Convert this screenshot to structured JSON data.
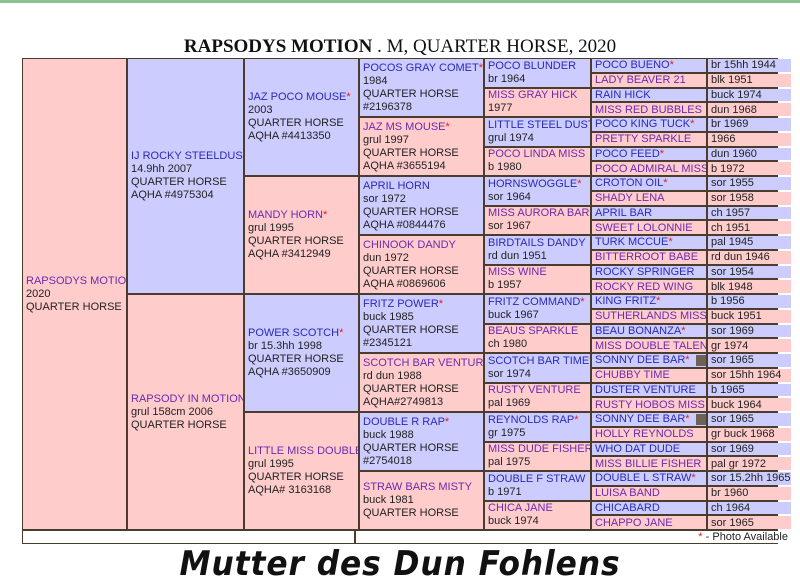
{
  "title": {
    "name": "RAPSODYS MOTION",
    "rest": " . M, QUARTER HORSE, 2020"
  },
  "colors": {
    "male_bg": "#ccccff",
    "female_bg": "#ffcccc",
    "star": "#e02020"
  },
  "gen1": [
    {
      "sex": "f",
      "name": "RAPSODYS MOTION",
      "star": false,
      "lines": [
        "2020",
        "QUARTER HORSE"
      ]
    }
  ],
  "gen2": [
    {
      "sex": "m",
      "name": "IJ ROCKY STEELDUST",
      "star": true,
      "lines": [
        "14.9hh 2007",
        "QUARTER HORSE",
        "AQHA #4975304"
      ]
    },
    {
      "sex": "f",
      "name": "RAPSODY IN MOTION",
      "star": true,
      "lines": [
        "grul 158cm 2006",
        "QUARTER HORSE"
      ]
    }
  ],
  "gen3": [
    {
      "sex": "m",
      "name": "JAZ POCO MOUSE",
      "star": true,
      "lines": [
        "2003",
        "QUARTER HORSE",
        "AQHA #4413350"
      ]
    },
    {
      "sex": "f",
      "name": "MANDY HORN",
      "star": true,
      "lines": [
        "grul 1995",
        "QUARTER HORSE",
        "AQHA #3412949"
      ]
    },
    {
      "sex": "m",
      "name": "POWER SCOTCH",
      "star": true,
      "lines": [
        "br 15.3hh 1998",
        "QUARTER HORSE",
        "AQHA #3650909"
      ]
    },
    {
      "sex": "f",
      "name": "LITTLE MISS DOUBLE",
      "star": true,
      "lines": [
        "grul 1995",
        "QUARTER HORSE",
        "AQHA# 3163168"
      ]
    }
  ],
  "gen4": [
    {
      "sex": "m",
      "name": "POCOS GRAY COMET",
      "star": true,
      "lines": [
        "1984",
        "QUARTER HORSE",
        "#2196378"
      ]
    },
    {
      "sex": "f",
      "name": "JAZ MS MOUSE",
      "star": true,
      "lines": [
        "grul 1997",
        "QUARTER HORSE",
        "AQHA #3655194"
      ]
    },
    {
      "sex": "m",
      "name": "APRIL HORN",
      "star": false,
      "lines": [
        "sor 1972",
        "QUARTER HORSE",
        "AQHA #0844476"
      ]
    },
    {
      "sex": "f",
      "name": "CHINOOK DANDY",
      "star": false,
      "lines": [
        "dun 1972",
        "QUARTER HORSE",
        "AQHA #0869606"
      ]
    },
    {
      "sex": "m",
      "name": "FRITZ POWER",
      "star": true,
      "lines": [
        "buck 1985",
        "QUARTER HORSE",
        "#2345121"
      ]
    },
    {
      "sex": "f",
      "name": "SCOTCH BAR VENTURE",
      "star": true,
      "lines": [
        "rd dun 1988",
        "QUARTER HORSE",
        "AQHA#2749813"
      ]
    },
    {
      "sex": "m",
      "name": "DOUBLE R RAP",
      "star": true,
      "lines": [
        "buck 1988",
        "QUARTER HORSE",
        "#2754018"
      ]
    },
    {
      "sex": "f",
      "name": "STRAW BARS MISTY",
      "star": false,
      "lines": [
        "buck 1981",
        "QUARTER HORSE"
      ]
    }
  ],
  "gen5": [
    {
      "sex": "m",
      "name": "POCO BLUNDER",
      "star": false,
      "lines": [
        "br 1964"
      ]
    },
    {
      "sex": "f",
      "name": "MISS GRAY HICK",
      "star": false,
      "lines": [
        "1977"
      ]
    },
    {
      "sex": "m",
      "name": "LITTLE STEEL DUST",
      "star": true,
      "lines": [
        "grul 1974"
      ]
    },
    {
      "sex": "f",
      "name": "POCO LINDA MISS",
      "star": false,
      "lines": [
        "b 1980"
      ]
    },
    {
      "sex": "m",
      "name": "HORNSWOGGLE",
      "star": true,
      "lines": [
        "sor 1964"
      ]
    },
    {
      "sex": "f",
      "name": "MISS AURORA BAR",
      "star": false,
      "lines": [
        "sor 1967"
      ]
    },
    {
      "sex": "m",
      "name": "BIRDTAILS DANDY",
      "star": false,
      "lines": [
        "rd dun 1951"
      ]
    },
    {
      "sex": "f",
      "name": "MISS WINE",
      "star": false,
      "lines": [
        "b 1957"
      ]
    },
    {
      "sex": "m",
      "name": "FRITZ COMMAND",
      "star": true,
      "lines": [
        "buck 1967"
      ]
    },
    {
      "sex": "f",
      "name": "BEAUS SPARKLE",
      "star": false,
      "lines": [
        "ch 1980"
      ]
    },
    {
      "sex": "m",
      "name": "SCOTCH BAR TIME",
      "star": true,
      "lines": [
        "sor 1974"
      ]
    },
    {
      "sex": "f",
      "name": "RUSTY VENTURE",
      "star": false,
      "lines": [
        "pal 1969"
      ]
    },
    {
      "sex": "m",
      "name": "REYNOLDS RAP",
      "star": true,
      "lines": [
        "gr 1975"
      ]
    },
    {
      "sex": "f",
      "name": "MISS DUDE FISHER",
      "star": false,
      "lines": [
        "pal 1975"
      ]
    },
    {
      "sex": "m",
      "name": "DOUBLE F STRAW",
      "star": false,
      "lines": [
        "b 1971"
      ]
    },
    {
      "sex": "f",
      "name": "CHICA JANE",
      "star": false,
      "lines": [
        "buck 1974"
      ]
    }
  ],
  "gen6": [
    {
      "sex": "m",
      "name": "POCO BUENO",
      "star": true,
      "info": "br 15hh 1944"
    },
    {
      "sex": "f",
      "name": "LADY BEAVER 21",
      "star": false,
      "info": "blk 1951"
    },
    {
      "sex": "m",
      "name": "RAIN HICK",
      "star": false,
      "info": "buck 1974"
    },
    {
      "sex": "f",
      "name": "MISS RED BUBBLES",
      "star": false,
      "info": "dun 1968"
    },
    {
      "sex": "m",
      "name": "POCO KING TUCK",
      "star": true,
      "info": "br 1969"
    },
    {
      "sex": "f",
      "name": "PRETTY SPARKLE",
      "star": false,
      "info": "1966"
    },
    {
      "sex": "m",
      "name": "POCO FEED",
      "star": true,
      "info": "dun 1960"
    },
    {
      "sex": "f",
      "name": "POCO ADMIRAL MISS",
      "star": false,
      "info": "b 1972"
    },
    {
      "sex": "m",
      "name": "CROTON OIL",
      "star": true,
      "info": "sor 1955"
    },
    {
      "sex": "f",
      "name": "SHADY LENA",
      "star": false,
      "info": "sor 1958"
    },
    {
      "sex": "m",
      "name": "APRIL BAR",
      "star": false,
      "info": "ch 1957"
    },
    {
      "sex": "f",
      "name": "SWEET LOLONNIE",
      "star": false,
      "info": "ch 1951"
    },
    {
      "sex": "m",
      "name": "TURK MCCUE",
      "star": true,
      "info": "pal 1945"
    },
    {
      "sex": "f",
      "name": "BITTERROOT BABE",
      "star": false,
      "info": "rd dun 1946"
    },
    {
      "sex": "m",
      "name": "ROCKY SPRINGER",
      "star": false,
      "info": "sor 1954"
    },
    {
      "sex": "f",
      "name": "ROCKY RED WING",
      "star": false,
      "info": "blk 1948"
    },
    {
      "sex": "m",
      "name": "KING FRITZ",
      "star": true,
      "info": "b 1956"
    },
    {
      "sex": "f",
      "name": "SUTHERLANDS MISS",
      "star": true,
      "info": "buck 1951"
    },
    {
      "sex": "m",
      "name": "BEAU BONANZA",
      "star": true,
      "info": "sor 1969"
    },
    {
      "sex": "f",
      "name": "MISS DOUBLE TALENT",
      "star": false,
      "info": "gr 1974"
    },
    {
      "sex": "m",
      "name": "SONNY DEE BAR",
      "star": true,
      "thumb": true,
      "info": "sor 1965"
    },
    {
      "sex": "f",
      "name": "CHUBBY TIME",
      "star": false,
      "info": "sor 15hh 1964"
    },
    {
      "sex": "m",
      "name": "DUSTER VENTURE",
      "star": false,
      "info": "b 1965"
    },
    {
      "sex": "f",
      "name": "RUSTY HOBOS MISS",
      "star": false,
      "info": "buck 1964"
    },
    {
      "sex": "m",
      "name": "SONNY DEE BAR",
      "star": true,
      "thumb": true,
      "info": "sor 1965"
    },
    {
      "sex": "f",
      "name": "HOLLY REYNOLDS",
      "star": false,
      "info": "gr buck 1968"
    },
    {
      "sex": "m",
      "name": "WHO DAT DUDE",
      "star": false,
      "info": "sor 1969"
    },
    {
      "sex": "f",
      "name": "MISS BILLIE FISHER",
      "star": false,
      "info": "pal gr 1972"
    },
    {
      "sex": "m",
      "name": "DOUBLE L STRAW",
      "star": true,
      "info": "sor 15.2hh 1965"
    },
    {
      "sex": "f",
      "name": "LUISA BAND",
      "star": false,
      "info": "br 1960"
    },
    {
      "sex": "m",
      "name": "CHICABARD",
      "star": false,
      "info": "ch 1964"
    },
    {
      "sex": "f",
      "name": "CHAPPO JANE",
      "star": false,
      "info": "sor 1965"
    }
  ],
  "legend": {
    "star": "*",
    "text": " - Photo Available"
  },
  "caption": "Mutter des Dun Fohlens"
}
